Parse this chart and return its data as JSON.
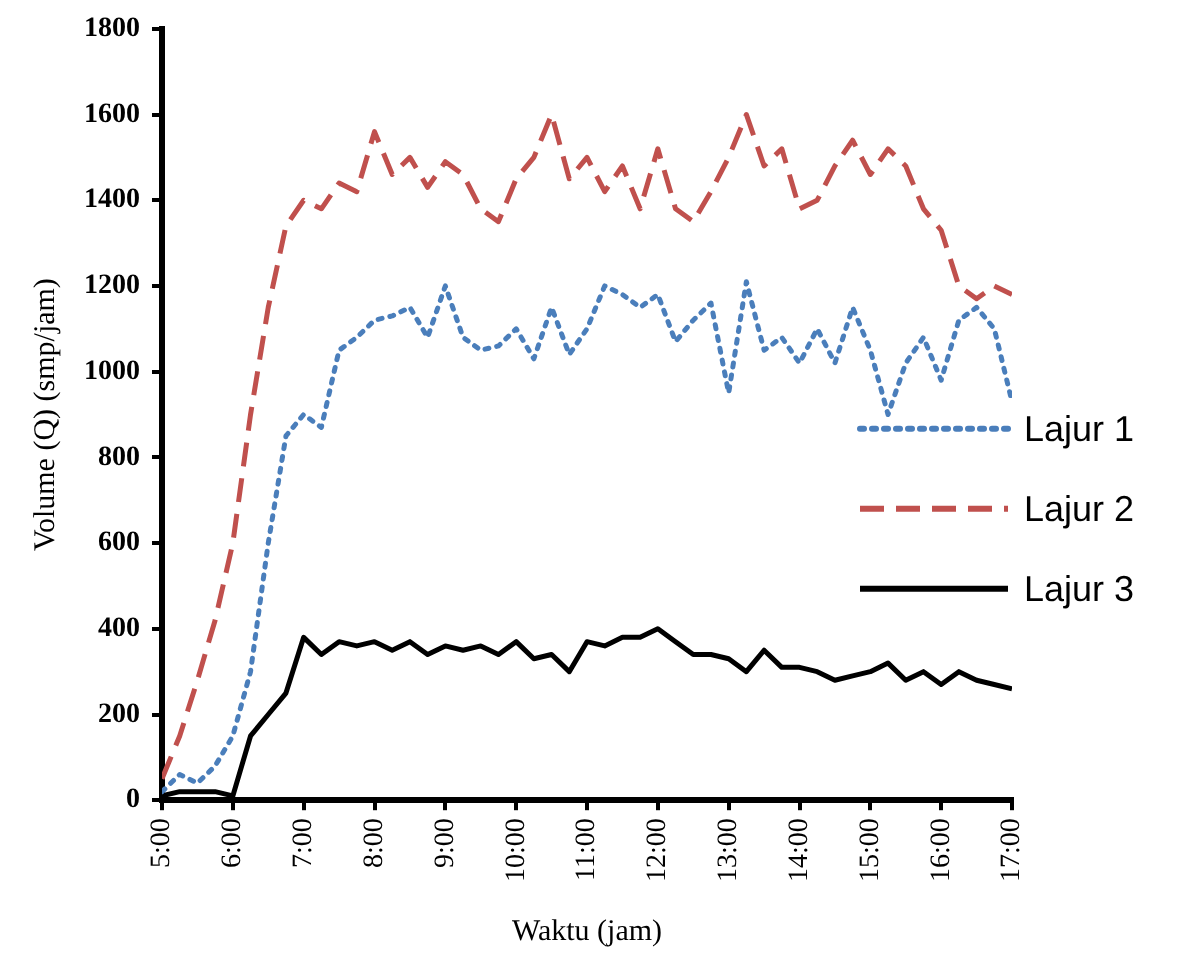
{
  "chart_data": {
    "type": "line",
    "xlabel": "Waktu (jam)",
    "ylabel": "Volume (Q) (smp/jam)",
    "x": [
      5,
      5.25,
      5.5,
      5.75,
      6,
      6.25,
      6.5,
      6.75,
      7,
      7.25,
      7.5,
      7.75,
      8,
      8.25,
      8.5,
      8.75,
      9,
      9.25,
      9.5,
      9.75,
      10,
      10.25,
      10.5,
      10.75,
      11,
      11.25,
      11.5,
      11.75,
      12,
      12.25,
      12.5,
      12.75,
      13,
      13.25,
      13.5,
      13.75,
      14,
      14.25,
      14.5,
      14.75,
      15,
      15.25,
      15.5,
      15.75,
      16,
      16.25,
      16.5,
      16.75,
      17
    ],
    "xlim": [
      5,
      17
    ],
    "xticks": [
      {
        "value": 5,
        "label": "5:00"
      },
      {
        "value": 6,
        "label": "6:00"
      },
      {
        "value": 7,
        "label": "7:00"
      },
      {
        "value": 8,
        "label": "8:00"
      },
      {
        "value": 9,
        "label": "9:00"
      },
      {
        "value": 10,
        "label": "10:00"
      },
      {
        "value": 11,
        "label": "11:00"
      },
      {
        "value": 12,
        "label": "12:00"
      },
      {
        "value": 13,
        "label": "13:00"
      },
      {
        "value": 14,
        "label": "14:00"
      },
      {
        "value": 15,
        "label": "15:00"
      },
      {
        "value": 16,
        "label": "16:00"
      },
      {
        "value": 17,
        "label": "17:00"
      }
    ],
    "ylim": [
      0,
      1800
    ],
    "yticks": [
      0,
      200,
      400,
      600,
      800,
      1000,
      1200,
      1400,
      1600,
      1800
    ],
    "grid": false,
    "legend": "right",
    "marker": "none",
    "series": [
      {
        "name": "Lajur 1",
        "color": "#4a7ebb",
        "line_style": "dotted",
        "values": [
          20,
          60,
          40,
          80,
          150,
          300,
          600,
          850,
          900,
          870,
          1050,
          1080,
          1120,
          1130,
          1150,
          1080,
          1200,
          1080,
          1050,
          1060,
          1100,
          1030,
          1150,
          1040,
          1100,
          1200,
          1180,
          1150,
          1180,
          1070,
          1120,
          1160,
          950,
          1210,
          1050,
          1080,
          1020,
          1100,
          1020,
          1150,
          1050,
          900,
          1020,
          1080,
          980,
          1120,
          1150,
          1100,
          930
        ]
      },
      {
        "name": "Lajur 2",
        "color": "#c0504d",
        "line_style": "dashed",
        "values": [
          50,
          150,
          280,
          420,
          600,
          900,
          1150,
          1340,
          1400,
          1380,
          1440,
          1420,
          1560,
          1460,
          1500,
          1430,
          1490,
          1460,
          1380,
          1350,
          1450,
          1500,
          1600,
          1450,
          1500,
          1420,
          1480,
          1380,
          1520,
          1380,
          1350,
          1420,
          1500,
          1600,
          1480,
          1520,
          1380,
          1400,
          1480,
          1540,
          1460,
          1520,
          1480,
          1380,
          1330,
          1200,
          1170,
          1200,
          1180
        ]
      },
      {
        "name": "Lajur 3",
        "color": "#000000",
        "line_style": "solid",
        "values": [
          10,
          20,
          20,
          20,
          10,
          150,
          200,
          250,
          380,
          340,
          370,
          360,
          370,
          350,
          370,
          340,
          360,
          350,
          360,
          340,
          370,
          330,
          340,
          300,
          370,
          360,
          380,
          380,
          400,
          370,
          340,
          340,
          330,
          300,
          350,
          310,
          310,
          300,
          280,
          290,
          300,
          320,
          280,
          300,
          270,
          300,
          280,
          270,
          260
        ]
      }
    ]
  }
}
